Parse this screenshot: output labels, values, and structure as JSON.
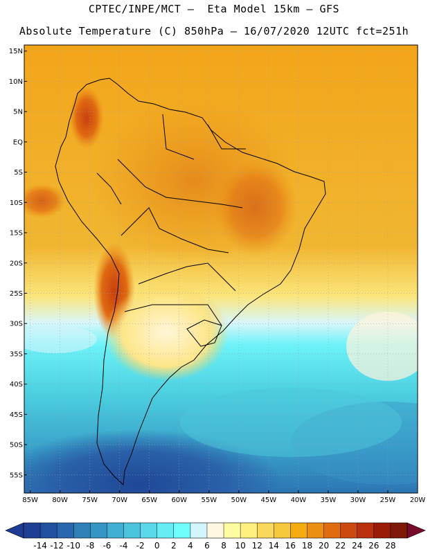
{
  "title_line1": "CPTEC/INPE/MCT –  Eta Model 15km – GFS",
  "title_line2": "Absolute Temperature (C) 850hPa – 16/07/2020 12UTC fct=251h",
  "map": {
    "lon_range": [
      -86,
      -20
    ],
    "lat_range": [
      -58,
      16
    ],
    "lat_ticks": [
      {
        "value": 15,
        "label": "15N"
      },
      {
        "value": 10,
        "label": "10N"
      },
      {
        "value": 5,
        "label": "5N"
      },
      {
        "value": 0,
        "label": "EQ"
      },
      {
        "value": -5,
        "label": "5S"
      },
      {
        "value": -10,
        "label": "10S"
      },
      {
        "value": -15,
        "label": "15S"
      },
      {
        "value": -20,
        "label": "20S"
      },
      {
        "value": -25,
        "label": "25S"
      },
      {
        "value": -30,
        "label": "30S"
      },
      {
        "value": -35,
        "label": "35S"
      },
      {
        "value": -40,
        "label": "40S"
      },
      {
        "value": -45,
        "label": "45S"
      },
      {
        "value": -50,
        "label": "50S"
      },
      {
        "value": -55,
        "label": "55S"
      }
    ],
    "lon_ticks": [
      {
        "value": -85,
        "label": "85W"
      },
      {
        "value": -80,
        "label": "80W"
      },
      {
        "value": -75,
        "label": "75W"
      },
      {
        "value": -70,
        "label": "70W"
      },
      {
        "value": -65,
        "label": "65W"
      },
      {
        "value": -60,
        "label": "60W"
      },
      {
        "value": -55,
        "label": "55W"
      },
      {
        "value": -50,
        "label": "50W"
      },
      {
        "value": -45,
        "label": "45W"
      },
      {
        "value": -40,
        "label": "40W"
      },
      {
        "value": -35,
        "label": "35W"
      },
      {
        "value": -30,
        "label": "30W"
      },
      {
        "value": -25,
        "label": "25W"
      },
      {
        "value": -20,
        "label": "20W"
      }
    ]
  },
  "colorbar": {
    "labels": [
      "-14",
      "-12",
      "-10",
      "-8",
      "-6",
      "-4",
      "-2",
      "0",
      "2",
      "4",
      "6",
      "8",
      "10",
      "12",
      "14",
      "16",
      "18",
      "20",
      "22",
      "24",
      "26",
      "28"
    ],
    "low_color": "#1e3c96",
    "high_color": "#7a0a2a",
    "colors": [
      "#1f3f95",
      "#2250a0",
      "#2a66ad",
      "#3080b8",
      "#3596c4",
      "#40aed2",
      "#4cc4de",
      "#5ad8ea",
      "#66ecf5",
      "#6ffcfc",
      "#d2f6fb",
      "#fff7e0",
      "#fffba0",
      "#fff080",
      "#fcd85a",
      "#f6c83c",
      "#f2ac10",
      "#ec8e12",
      "#e06c10",
      "#cc4a10",
      "#b8300c",
      "#9a1c08",
      "#7e1808"
    ]
  }
}
